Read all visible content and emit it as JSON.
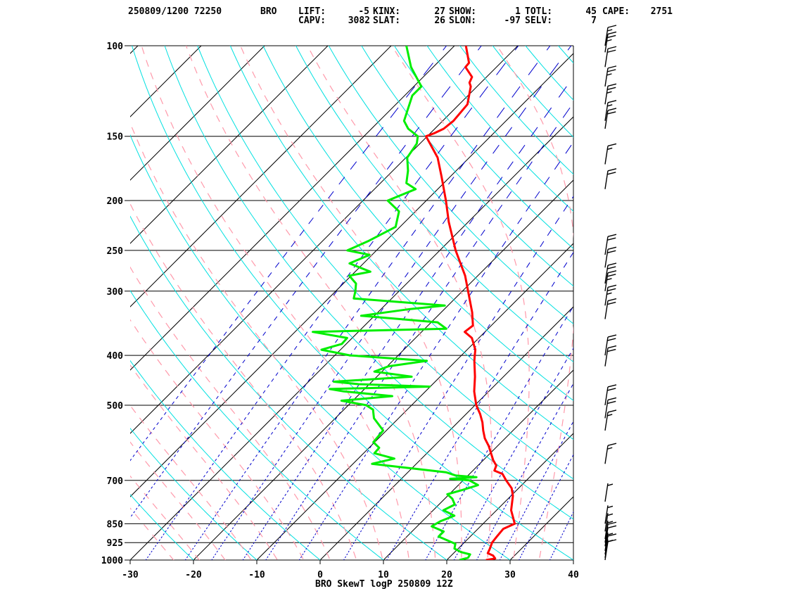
{
  "header": {
    "line1": {
      "datetime_station": "250809/1200 72250",
      "site": "BRO",
      "lift_label": "LIFT:",
      "lift_value": "-5",
      "kinx_label": "KINX:",
      "kinx_value": "27",
      "show_label": "SHOW:",
      "show_value": "1",
      "totl_label": "TOTL:",
      "totl_value": "45",
      "cape_label": "CAPE:",
      "cape_value": "2751"
    },
    "line2": {
      "capv_label": "CAPV:",
      "capv_value": "3082",
      "slat_label": "SLAT:",
      "slat_value": "26",
      "slon_label": "SLON:",
      "slon_value": "-97",
      "selv_label": "SELV:",
      "selv_value": "7"
    }
  },
  "chart_data": {
    "type": "line",
    "title": "BRO SkewT logP 250809 12Z",
    "xlabel": "",
    "ylabel": "",
    "x_ticks": [
      -30,
      -20,
      -10,
      0,
      10,
      20,
      30,
      40
    ],
    "x_tick_labels": [
      "-30",
      "-20",
      "-10",
      "0",
      "10",
      "20",
      "30",
      "40"
    ],
    "y_ticks": [
      1000,
      925,
      850,
      700,
      500,
      400,
      300,
      250,
      200,
      150,
      100
    ],
    "y_tick_labels": [
      "1000",
      "925",
      "850",
      "700",
      "500",
      "400",
      "300",
      "250",
      "200",
      "150",
      "100"
    ],
    "ylim": [
      1000,
      100
    ],
    "xlim_bottom": [
      -30,
      40
    ],
    "y_scale": "log",
    "skew_deg": 45,
    "colors": {
      "temperature": "#ff0000",
      "dewpoint": "#00ee00",
      "isotherm": "#000000",
      "dry_adiabat": "#00e0e0",
      "moist_adiabat": "#ff99aa",
      "mixing_ratio": "#0000cc",
      "isobar": "#000000",
      "wind_barb": "#000000"
    },
    "series": [
      {
        "name": "",
        "key": "temperature",
        "points": [
          [
            1000,
            26.2
          ],
          [
            993,
            27.4
          ],
          [
            980,
            26.6
          ],
          [
            970,
            25.4
          ],
          [
            950,
            25.0
          ],
          [
            925,
            24.4
          ],
          [
            900,
            24.2
          ],
          [
            870,
            24.0
          ],
          [
            850,
            25.0
          ],
          [
            800,
            22.3
          ],
          [
            750,
            20.3
          ],
          [
            725,
            18.9
          ],
          [
            700,
            16.8
          ],
          [
            680,
            15.2
          ],
          [
            670,
            13.4
          ],
          [
            655,
            12.9
          ],
          [
            640,
            11.6
          ],
          [
            600,
            8.6
          ],
          [
            580,
            6.8
          ],
          [
            560,
            5.3
          ],
          [
            540,
            3.9
          ],
          [
            520,
            2.2
          ],
          [
            500,
            0.2
          ],
          [
            470,
            -2.3
          ],
          [
            440,
            -4.5
          ],
          [
            410,
            -7.1
          ],
          [
            400,
            -7.9
          ],
          [
            390,
            -8.7
          ],
          [
            370,
            -11.1
          ],
          [
            360,
            -13.2
          ],
          [
            350,
            -12.9
          ],
          [
            330,
            -15.1
          ],
          [
            300,
            -19.1
          ],
          [
            280,
            -22.0
          ],
          [
            250,
            -27.5
          ],
          [
            220,
            -33.1
          ],
          [
            200,
            -36.9
          ],
          [
            180,
            -41.3
          ],
          [
            165,
            -45.0
          ],
          [
            150,
            -50.2
          ],
          [
            148,
            -49.4
          ],
          [
            145,
            -48.6
          ],
          [
            140,
            -48.3
          ],
          [
            130,
            -48.7
          ],
          [
            120,
            -51.0
          ],
          [
            118,
            -51.8
          ],
          [
            115,
            -52.3
          ],
          [
            110,
            -54.9
          ],
          [
            108,
            -55.0
          ],
          [
            100,
            -58.2
          ]
        ]
      },
      {
        "name": "",
        "key": "dewpoint",
        "points": [
          [
            1000,
            22.0
          ],
          [
            990,
            23.0
          ],
          [
            975,
            22.8
          ],
          [
            965,
            21.0
          ],
          [
            950,
            19.4
          ],
          [
            930,
            18.8
          ],
          [
            900,
            15.0
          ],
          [
            880,
            15.0
          ],
          [
            860,
            12.3
          ],
          [
            840,
            12.9
          ],
          [
            820,
            14.2
          ],
          [
            800,
            11.6
          ],
          [
            780,
            12.5
          ],
          [
            760,
            11.2
          ],
          [
            745,
            9.7
          ],
          [
            730,
            11.5
          ],
          [
            715,
            13.1
          ],
          [
            700,
            11.0
          ],
          [
            695,
            7.7
          ],
          [
            690,
            11.6
          ],
          [
            685,
            8.1
          ],
          [
            675,
            6.0
          ],
          [
            650,
            -7.0
          ],
          [
            635,
            -4.3
          ],
          [
            620,
            -8.3
          ],
          [
            605,
            -8.4
          ],
          [
            590,
            -10.2
          ],
          [
            560,
            -10.5
          ],
          [
            530,
            -13.9
          ],
          [
            510,
            -15.4
          ],
          [
            500,
            -17.2
          ],
          [
            490,
            -21.8
          ],
          [
            480,
            -14.5
          ],
          [
            470,
            -22.9
          ],
          [
            465,
            -25.5
          ],
          [
            460,
            -10.1
          ],
          [
            455,
            -21.7
          ],
          [
            450,
            -26.0
          ],
          [
            440,
            -14.5
          ],
          [
            430,
            -21.2
          ],
          [
            420,
            -19.8
          ],
          [
            410,
            -14.6
          ],
          [
            400,
            -27.6
          ],
          [
            390,
            -33.0
          ],
          [
            380,
            -30.7
          ],
          [
            370,
            -30.8
          ],
          [
            360,
            -37.2
          ],
          [
            355,
            -16.6
          ],
          [
            345,
            -19.0
          ],
          [
            335,
            -32.1
          ],
          [
            325,
            -25.4
          ],
          [
            320,
            -20.5
          ],
          [
            310,
            -36.0
          ],
          [
            300,
            -36.9
          ],
          [
            290,
            -38.0
          ],
          [
            280,
            -40.3
          ],
          [
            275,
            -37.6
          ],
          [
            265,
            -42.2
          ],
          [
            255,
            -40.4
          ],
          [
            250,
            -44.6
          ],
          [
            240,
            -42.8
          ],
          [
            225,
            -40.7
          ],
          [
            210,
            -42.6
          ],
          [
            200,
            -46.1
          ],
          [
            190,
            -43.5
          ],
          [
            185,
            -45.9
          ],
          [
            175,
            -47.6
          ],
          [
            165,
            -49.8
          ],
          [
            155,
            -50.5
          ],
          [
            150,
            -51.5
          ],
          [
            145,
            -54.2
          ],
          [
            140,
            -56.1
          ],
          [
            125,
            -58.8
          ],
          [
            120,
            -58.8
          ],
          [
            110,
            -63.5
          ],
          [
            100,
            -67.6
          ]
        ]
      }
    ],
    "wind_barbs": [
      {
        "p": 1000,
        "speed_kt": 10
      },
      {
        "p": 990,
        "speed_kt": 5
      },
      {
        "p": 975,
        "speed_kt": 10
      },
      {
        "p": 960,
        "speed_kt": 5
      },
      {
        "p": 940,
        "speed_kt": 10
      },
      {
        "p": 925,
        "speed_kt": 10
      },
      {
        "p": 910,
        "speed_kt": 5
      },
      {
        "p": 880,
        "speed_kt": 5
      },
      {
        "p": 850,
        "speed_kt": 5
      },
      {
        "p": 770,
        "speed_kt": 5
      },
      {
        "p": 650,
        "speed_kt": 15
      },
      {
        "p": 560,
        "speed_kt": 15
      },
      {
        "p": 530,
        "speed_kt": 20
      },
      {
        "p": 500,
        "speed_kt": 20
      },
      {
        "p": 420,
        "speed_kt": 20
      },
      {
        "p": 400,
        "speed_kt": 20
      },
      {
        "p": 340,
        "speed_kt": 20
      },
      {
        "p": 320,
        "speed_kt": 25
      },
      {
        "p": 300,
        "speed_kt": 25
      },
      {
        "p": 290,
        "speed_kt": 20
      },
      {
        "p": 270,
        "speed_kt": 20
      },
      {
        "p": 255,
        "speed_kt": 20
      },
      {
        "p": 190,
        "speed_kt": 20
      },
      {
        "p": 170,
        "speed_kt": 15
      },
      {
        "p": 145,
        "speed_kt": 20
      },
      {
        "p": 140,
        "speed_kt": 15
      },
      {
        "p": 130,
        "speed_kt": 25
      },
      {
        "p": 120,
        "speed_kt": 25
      },
      {
        "p": 110,
        "speed_kt": 20
      },
      {
        "p": 103,
        "speed_kt": 25
      },
      {
        "p": 100,
        "speed_kt": 15
      }
    ]
  }
}
